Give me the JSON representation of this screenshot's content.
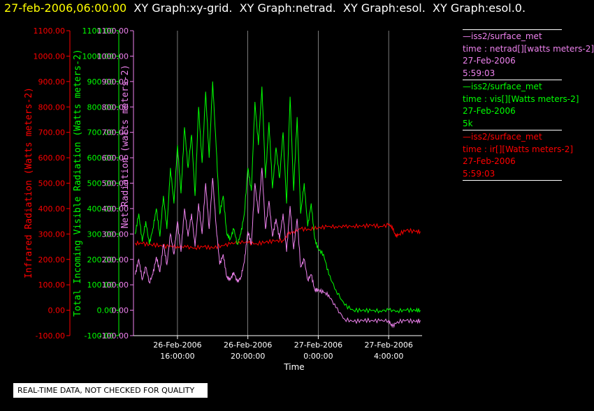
{
  "header": {
    "timestamp": "27-feb-2006,06:00:00",
    "graphs": "  XY Graph:xy-grid.  XY Graph:netrad.  XY Graph:esol.  XY Graph:esol.0."
  },
  "colors": {
    "infrared": "#ff0000",
    "visible": "#00ff00",
    "net": "#ee82ee",
    "grid": "#ffffff",
    "background": "#000000"
  },
  "legend": [
    {
      "id": "net",
      "color": "#ee82ee",
      "lines": [
        "—iss2/surface_met",
        "time : netrad[][watts meters-2]",
        "27-Feb-2006",
        "5:59:03"
      ]
    },
    {
      "id": "visible",
      "color": "#00ff00",
      "lines": [
        "—iss2/surface_met",
        "time : vis[][Watts meters-2]",
        "27-Feb-2006",
        "5k"
      ]
    },
    {
      "id": "infrared",
      "color": "#ff0000",
      "lines": [
        "—iss2/surface_met",
        "time : ir[][Watts meters-2]",
        "27-Feb-2006",
        "5:59:03"
      ]
    }
  ],
  "quality_note": "REAL-TIME DATA, NOT CHECKED FOR QUALITY",
  "chart_data": {
    "type": "line",
    "xlabel": "Time",
    "xlim": [
      13.5,
      29.9
    ],
    "ylim": [
      -100,
      1100
    ],
    "x_ticks": [
      {
        "x": 16,
        "label1": "26-Feb-2006",
        "label2": "16:00:00"
      },
      {
        "x": 20,
        "label1": "26-Feb-2006",
        "label2": "20:00:00"
      },
      {
        "x": 24,
        "label1": "27-Feb-2006",
        "label2": "0:00:00"
      },
      {
        "x": 28,
        "label1": "27-Feb-2006",
        "label2": "4:00:00"
      }
    ],
    "y_ticks": [
      -100,
      0,
      100,
      200,
      300,
      400,
      500,
      600,
      700,
      800,
      900,
      1000,
      1100
    ],
    "tick_labels": {
      "infrared": [
        "-100.00",
        "0.00",
        "100.00",
        "200.00",
        "300.00",
        "400.00",
        "500.00",
        "600.00",
        "700.00",
        "800.00",
        "900.00",
        "1000.00",
        "1100.00"
      ],
      "visible": [
        "-100.00",
        "0.00",
        "100.00",
        "200.00",
        "300.00",
        "400.00",
        "500.00",
        "600.00",
        "700.00",
        "800.00",
        "900.00",
        "1000.00",
        "1100.00"
      ],
      "net": [
        "-100.00",
        "0.00",
        "100.00",
        "200.00",
        "300.00",
        "400.00",
        "500.00",
        "600.00",
        "700.00",
        "800.00",
        "900.00",
        "1000.00",
        "1100.00"
      ]
    },
    "ylabels": {
      "infrared": "Infrared Radiation (Watts meters-2)",
      "visible": "Total Incoming Visible Radiation (Watts meters-2)",
      "net": "Net Radiation (watts meters-2)"
    },
    "grid": true,
    "series": [
      {
        "name": "ir",
        "color": "#ff0000",
        "x": [
          13.6,
          14.0,
          14.5,
          15.0,
          15.5,
          16.0,
          16.5,
          17.0,
          17.5,
          18.0,
          18.5,
          19.0,
          19.5,
          20.0,
          20.5,
          21.0,
          21.5,
          22.0,
          22.3,
          22.6,
          23.0,
          23.5,
          24.0,
          24.5,
          25.0,
          25.5,
          26.0,
          26.5,
          27.0,
          27.5,
          28.0,
          28.2,
          28.4,
          28.6,
          29.0,
          29.5,
          29.8
        ],
        "y": [
          265,
          262,
          258,
          255,
          250,
          252,
          248,
          246,
          250,
          245,
          255,
          260,
          270,
          265,
          262,
          268,
          272,
          275,
          300,
          310,
          320,
          318,
          325,
          328,
          330,
          328,
          332,
          330,
          335,
          330,
          335,
          330,
          290,
          300,
          315,
          310,
          310
        ]
      },
      {
        "name": "vis",
        "color": "#00ff00",
        "x": [
          13.6,
          13.8,
          14.0,
          14.2,
          14.4,
          14.6,
          14.8,
          15.0,
          15.2,
          15.4,
          15.6,
          15.8,
          16.0,
          16.2,
          16.4,
          16.6,
          16.8,
          17.0,
          17.2,
          17.4,
          17.6,
          17.8,
          18.0,
          18.2,
          18.4,
          18.6,
          18.8,
          19.0,
          19.2,
          19.4,
          19.6,
          19.8,
          20.0,
          20.2,
          20.4,
          20.6,
          20.8,
          21.0,
          21.2,
          21.4,
          21.6,
          21.8,
          22.0,
          22.2,
          22.4,
          22.6,
          22.8,
          23.0,
          23.2,
          23.4,
          23.6,
          23.8,
          24.0,
          24.3,
          24.6,
          25.0,
          25.5,
          26.0,
          26.5,
          27.0,
          27.5,
          28.0,
          28.5,
          29.0,
          29.5,
          29.8
        ],
        "y": [
          300,
          380,
          270,
          350,
          260,
          320,
          400,
          290,
          450,
          320,
          560,
          420,
          650,
          460,
          720,
          560,
          690,
          450,
          800,
          580,
          860,
          600,
          900,
          640,
          380,
          450,
          300,
          280,
          320,
          260,
          300,
          380,
          560,
          470,
          820,
          650,
          880,
          520,
          740,
          480,
          640,
          520,
          700,
          420,
          840,
          470,
          760,
          380,
          500,
          330,
          420,
          280,
          240,
          220,
          140,
          80,
          20,
          0,
          0,
          -2,
          -2,
          0,
          -2,
          0,
          0,
          0
        ]
      },
      {
        "name": "netrad",
        "color": "#ee82ee",
        "x": [
          13.6,
          13.8,
          14.0,
          14.2,
          14.4,
          14.6,
          14.8,
          15.0,
          15.2,
          15.4,
          15.6,
          15.8,
          16.0,
          16.2,
          16.4,
          16.6,
          16.8,
          17.0,
          17.2,
          17.4,
          17.6,
          17.8,
          18.0,
          18.2,
          18.4,
          18.6,
          18.8,
          19.0,
          19.2,
          19.4,
          19.6,
          19.8,
          20.0,
          20.2,
          20.4,
          20.6,
          20.8,
          21.0,
          21.2,
          21.4,
          21.6,
          21.8,
          22.0,
          22.2,
          22.4,
          22.6,
          22.8,
          23.0,
          23.2,
          23.4,
          23.6,
          23.8,
          24.0,
          24.3,
          24.6,
          25.0,
          25.5,
          26.0,
          26.5,
          27.0,
          27.5,
          28.0,
          28.2,
          28.5,
          29.0,
          29.5,
          29.8
        ],
        "y": [
          140,
          200,
          120,
          170,
          110,
          140,
          210,
          150,
          260,
          180,
          300,
          220,
          350,
          230,
          400,
          290,
          380,
          250,
          420,
          300,
          500,
          320,
          520,
          330,
          180,
          220,
          130,
          120,
          150,
          110,
          130,
          190,
          310,
          260,
          500,
          380,
          560,
          320,
          430,
          290,
          360,
          280,
          380,
          230,
          410,
          240,
          360,
          170,
          200,
          120,
          140,
          80,
          80,
          70,
          60,
          10,
          -35,
          -45,
          -40,
          -40,
          -42,
          -40,
          -65,
          -45,
          -40,
          -45,
          -40
        ]
      }
    ]
  }
}
